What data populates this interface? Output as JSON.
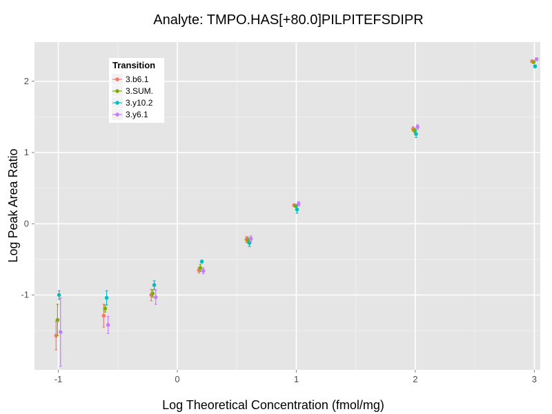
{
  "chart_data": {
    "type": "scatter",
    "title": "Analyte: TMPO.HAS[+80.0]PILPITEFSDIPR",
    "xlabel": "Log Theoretical Concentration (fmol/mg)",
    "ylabel": "Log Peak Area Ratio",
    "xlim": [
      -1.2,
      3.05
    ],
    "ylim": [
      -2.05,
      2.55
    ],
    "xticks": [
      -1,
      0,
      1,
      2,
      3
    ],
    "xtick_labels": [
      "-1",
      "0",
      "1",
      "2",
      "3"
    ],
    "yticks": [
      -1,
      0,
      1,
      2
    ],
    "ytick_labels": [
      "-1",
      "0",
      "1",
      "2"
    ],
    "grid": true,
    "legend": {
      "title": "Transition",
      "placement": "top-left"
    },
    "series": [
      {
        "name": "3.b6.1",
        "color": "#F8766D",
        "x": [
          -1.0,
          -0.6,
          -0.2,
          0.2,
          0.6,
          1.0,
          2.0,
          3.0
        ],
        "y": [
          -1.57,
          -1.29,
          -1.0,
          -0.65,
          -0.22,
          0.26,
          1.33,
          2.28
        ],
        "err": [
          0.2,
          0.16,
          0.08,
          0.04,
          0.04,
          0.02,
          0.03,
          0.02
        ]
      },
      {
        "name": "3.SUM.",
        "color": "#7CAE00",
        "x": [
          -1.0,
          -0.6,
          -0.2,
          0.2,
          0.6,
          1.0,
          2.0,
          3.0
        ],
        "y": [
          -1.35,
          -1.19,
          -0.98,
          -0.62,
          -0.23,
          0.25,
          1.31,
          2.27
        ],
        "err": [
          0.22,
          0.05,
          0.05,
          0.05,
          0.04,
          0.02,
          0.03,
          0.02
        ]
      },
      {
        "name": "3.y10.2",
        "color": "#00BFC4",
        "x": [
          -1.0,
          -0.6,
          -0.2,
          0.2,
          0.6,
          1.0,
          2.0,
          3.0
        ],
        "y": [
          -1.0,
          -1.04,
          -0.86,
          -0.53,
          -0.27,
          0.2,
          1.26,
          2.21
        ],
        "err": [
          0.06,
          0.1,
          0.06,
          0.02,
          0.05,
          0.05,
          0.05,
          0.02
        ]
      },
      {
        "name": "3.y6.1",
        "color": "#C77CFF",
        "x": [
          -1.0,
          -0.6,
          -0.2,
          0.2,
          0.6,
          1.0,
          2.0,
          3.0
        ],
        "y": [
          -1.52,
          -1.42,
          -1.03,
          -0.66,
          -0.21,
          0.28,
          1.36,
          2.31
        ],
        "err": [
          0.48,
          0.12,
          0.1,
          0.04,
          0.04,
          0.03,
          0.03,
          0.02
        ]
      }
    ]
  }
}
